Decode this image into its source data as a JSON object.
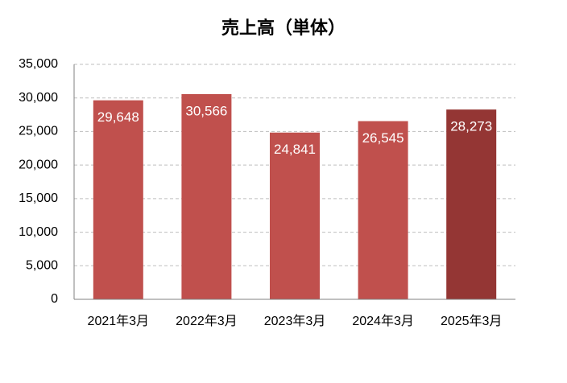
{
  "chart_data": {
    "type": "bar",
    "title": "売上高（単体）",
    "categories": [
      "2021年3月",
      "2022年3月",
      "2023年3月",
      "2024年3月",
      "2025年3月"
    ],
    "values": [
      29648,
      30566,
      24841,
      26545,
      28273
    ],
    "value_labels": [
      "29,648",
      "30,566",
      "24,841",
      "26,545",
      "28,273"
    ],
    "colors": [
      "#c0504d",
      "#c0504d",
      "#c0504d",
      "#c0504d",
      "#943634"
    ],
    "ylim": [
      0,
      35000
    ],
    "yticks": [
      0,
      {
        "value": 5000,
        "label": "5,000"
      },
      {
        "value": 10000,
        "label": "10,000"
      },
      {
        "value": 15000,
        "label": "15,000"
      },
      {
        "value": 20000,
        "label": "20,000"
      },
      {
        "value": 25000,
        "label": "25,000"
      },
      {
        "value": 30000,
        "label": "30,000"
      },
      {
        "value": 35000,
        "label": "35,000"
      }
    ],
    "grid": true
  }
}
